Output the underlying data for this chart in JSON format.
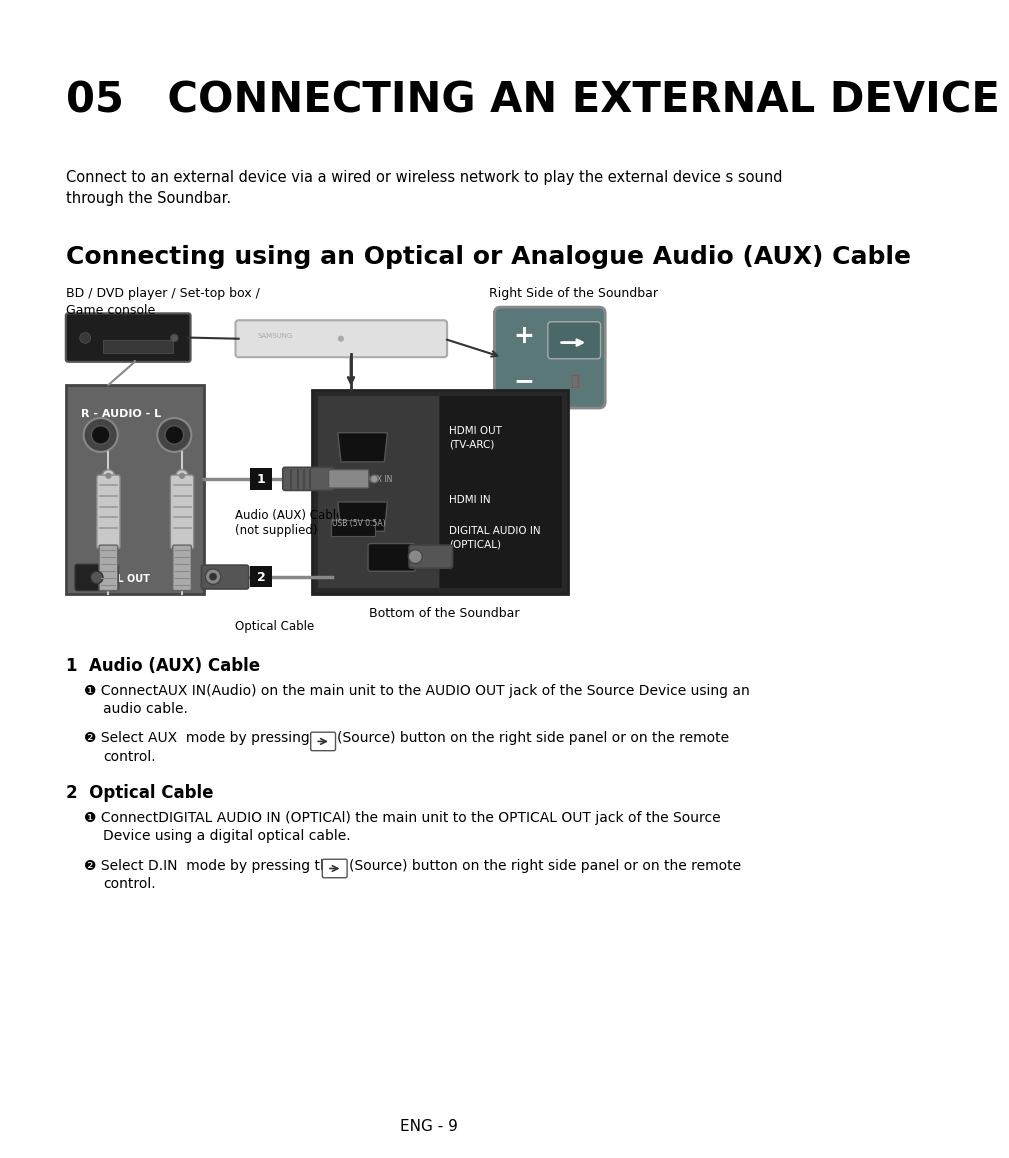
{
  "title": "05   CONNECTING AN EXTERNAL DEVICE",
  "subtitle_line1": "Connect to an external device via a wired or wireless network to play the external device s sound",
  "subtitle_line2": "through the Soundbar.",
  "section_title": "Connecting using an Optical or Analogue Audio (AUX) Cable",
  "label_bd": "BD / DVD player / Set-top box /",
  "label_gc": "Game console",
  "label_right_side": "Right Side of the Soundbar",
  "label_bottom": "Bottom of the Soundbar",
  "label_audio_cable_1": "Audio (AUX) Cable",
  "label_audio_cable_2": "(not supplied)",
  "label_optical_cable": "Optical Cable",
  "label_aux_in": "AUX IN",
  "label_usb": "USB (5V 0.5A)",
  "label_hdmi_out": "HDMI OUT\n(TV-ARC)",
  "label_hdmi_in": "HDMI IN",
  "label_digital": "DIGITAL AUDIO IN\n(OPTICAL)",
  "label_optical_out": "OPTICAL OUT",
  "label_r_audio_l": "R - AUDIO - L",
  "h1": "1  Audio (AUX) Cable",
  "h2": "2  Optical Cable",
  "step1a": "❶ ConnectAUX IN(Audio) on the main unit to the AUDIO OUT jack of the Source Device using an",
  "step1a2": "audio cable.",
  "step1b": "❷ Select AUX  mode by pressing",
  "step1b2": "(Source) button on the right side panel or on the remote",
  "step1b3": "control.",
  "step2a": "❶ ConnectDIGITAL AUDIO IN (OPTICAl) the main unit to the OPTICAL OUT jack of the Source",
  "step2a2": "Device using a digital optical cable.",
  "step2b": "❷ Select D.IN  mode by pressing the",
  "step2b2": "(Source) button on the right side panel or on the remote",
  "step2b3": "control.",
  "footer": "ENG - 9",
  "bg_color": "#ffffff",
  "text_color": "#000000",
  "source_panel_color": "#646464",
  "back_panel_dark": "#282828",
  "back_panel_mid": "#3c3c3c",
  "back_panel_label": "#1e1e1e",
  "remote_color": "#5a7878",
  "dvd_color": "#1e1e1e",
  "soundbar_color": "#e0e0e0"
}
